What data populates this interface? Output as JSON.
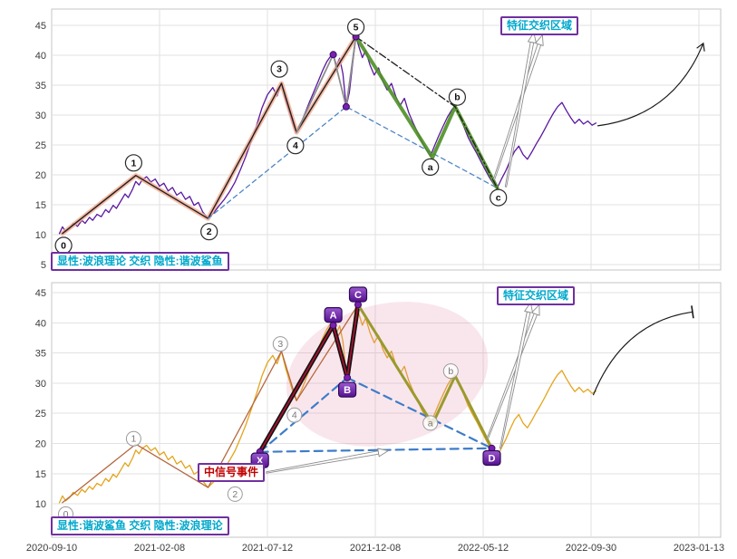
{
  "chart_data": {
    "type": "line",
    "description": "Same price series rendered in two stacked panels: explicit Elliott-wave view (top) and explicit harmonic-shark view (bottom)",
    "x_tick_labels": [
      "2020-09-10",
      "2021-02-08",
      "2021-07-12",
      "2021-12-08",
      "2022-05-12",
      "2022-09-30",
      "2023-01-13"
    ],
    "x_unit": "tick-index (0..6, evenly spaced date ticks)",
    "price_series": [
      [
        0.07,
        10.1
      ],
      [
        0.1,
        11.3
      ],
      [
        0.13,
        10.5
      ],
      [
        0.17,
        11.1
      ],
      [
        0.2,
        11.9
      ],
      [
        0.24,
        11.4
      ],
      [
        0.28,
        12.4
      ],
      [
        0.31,
        11.9
      ],
      [
        0.35,
        12.9
      ],
      [
        0.38,
        12.4
      ],
      [
        0.42,
        13.4
      ],
      [
        0.46,
        13.0
      ],
      [
        0.5,
        14.2
      ],
      [
        0.53,
        13.7
      ],
      [
        0.57,
        14.9
      ],
      [
        0.6,
        14.4
      ],
      [
        0.64,
        15.6
      ],
      [
        0.68,
        16.8
      ],
      [
        0.71,
        16.2
      ],
      [
        0.75,
        17.6
      ],
      [
        0.78,
        18.9
      ],
      [
        0.81,
        18.3
      ],
      [
        0.84,
        19.2
      ],
      [
        0.88,
        19.7
      ],
      [
        0.92,
        18.8
      ],
      [
        0.96,
        19.3
      ],
      [
        1.0,
        18.1
      ],
      [
        1.04,
        18.6
      ],
      [
        1.08,
        17.3
      ],
      [
        1.12,
        17.9
      ],
      [
        1.16,
        16.6
      ],
      [
        1.2,
        17.1
      ],
      [
        1.24,
        15.9
      ],
      [
        1.28,
        16.4
      ],
      [
        1.32,
        14.9
      ],
      [
        1.36,
        15.4
      ],
      [
        1.4,
        13.8
      ],
      [
        1.45,
        12.7
      ],
      [
        1.5,
        13.6
      ],
      [
        1.55,
        14.8
      ],
      [
        1.6,
        15.9
      ],
      [
        1.65,
        17.2
      ],
      [
        1.7,
        18.8
      ],
      [
        1.75,
        20.9
      ],
      [
        1.8,
        23.1
      ],
      [
        1.85,
        25.6
      ],
      [
        1.9,
        28.3
      ],
      [
        1.95,
        31.2
      ],
      [
        2.0,
        33.4
      ],
      [
        2.05,
        34.6
      ],
      [
        2.09,
        33.2
      ],
      [
        2.13,
        35.3
      ],
      [
        2.17,
        32.4
      ],
      [
        2.21,
        30.1
      ],
      [
        2.24,
        28.3
      ],
      [
        2.27,
        27.1
      ],
      [
        2.31,
        28.6
      ],
      [
        2.35,
        30.4
      ],
      [
        2.39,
        32.2
      ],
      [
        2.43,
        33.9
      ],
      [
        2.47,
        35.6
      ],
      [
        2.51,
        37.4
      ],
      [
        2.55,
        38.9
      ],
      [
        2.58,
        39.7
      ],
      [
        2.61,
        40.1
      ],
      [
        2.64,
        38.3
      ],
      [
        2.67,
        39.5
      ],
      [
        2.7,
        36.9
      ],
      [
        2.73,
        31.4
      ],
      [
        2.76,
        33.8
      ],
      [
        2.79,
        38.6
      ],
      [
        2.82,
        43.1
      ],
      [
        2.85,
        41.3
      ],
      [
        2.88,
        39.6
      ],
      [
        2.91,
        40.8
      ],
      [
        2.95,
        38.4
      ],
      [
        2.99,
        36.7
      ],
      [
        3.03,
        37.9
      ],
      [
        3.07,
        35.6
      ],
      [
        3.11,
        34.2
      ],
      [
        3.15,
        35.3
      ],
      [
        3.19,
        33.1
      ],
      [
        3.23,
        31.6
      ],
      [
        3.27,
        32.8
      ],
      [
        3.31,
        30.4
      ],
      [
        3.35,
        28.7
      ],
      [
        3.39,
        27.2
      ],
      [
        3.43,
        25.6
      ],
      [
        3.47,
        24.3
      ],
      [
        3.51,
        23.1
      ],
      [
        3.55,
        24.9
      ],
      [
        3.59,
        26.6
      ],
      [
        3.63,
        28.2
      ],
      [
        3.67,
        29.7
      ],
      [
        3.71,
        30.9
      ],
      [
        3.74,
        31.5
      ],
      [
        3.78,
        29.9
      ],
      [
        3.82,
        28.1
      ],
      [
        3.86,
        26.3
      ],
      [
        3.9,
        24.9
      ],
      [
        3.94,
        23.6
      ],
      [
        3.98,
        22.2
      ],
      [
        4.02,
        20.8
      ],
      [
        4.06,
        19.5
      ],
      [
        4.1,
        18.4
      ],
      [
        4.13,
        17.8
      ],
      [
        4.17,
        19.3
      ],
      [
        4.21,
        20.7
      ],
      [
        4.25,
        22.4
      ],
      [
        4.29,
        23.9
      ],
      [
        4.33,
        24.8
      ],
      [
        4.37,
        23.4
      ],
      [
        4.41,
        22.6
      ],
      [
        4.45,
        23.8
      ],
      [
        4.49,
        25.1
      ],
      [
        4.53,
        26.3
      ],
      [
        4.57,
        27.6
      ],
      [
        4.61,
        29.0
      ],
      [
        4.65,
        30.3
      ],
      [
        4.69,
        31.4
      ],
      [
        4.73,
        32.1
      ],
      [
        4.77,
        30.8
      ],
      [
        4.81,
        29.6
      ],
      [
        4.85,
        28.6
      ],
      [
        4.89,
        29.3
      ],
      [
        4.93,
        28.5
      ],
      [
        4.97,
        29.0
      ],
      [
        5.01,
        28.3
      ],
      [
        5.05,
        28.7
      ]
    ],
    "panels": [
      {
        "name": "explicit-wave-implicit-harmonic",
        "legend_label": "显性:波浪理论 交织 隐性:谐波鲨鱼",
        "region_label": "特征交织区域",
        "price_color": "#5a17a0",
        "yticks": [
          45,
          40,
          35,
          30,
          25,
          20,
          15,
          10,
          5
        ],
        "wave_label_style": "solid",
        "wave_labels": [
          {
            "label": "0",
            "x": 0.11,
            "y": 8.2
          },
          {
            "label": "1",
            "x": 0.76,
            "y": 22.0
          },
          {
            "label": "2",
            "x": 1.46,
            "y": 10.5
          },
          {
            "label": "3",
            "x": 2.11,
            "y": 37.7
          },
          {
            "label": "4",
            "x": 2.26,
            "y": 24.9
          },
          {
            "label": "5",
            "x": 2.82,
            "y": 44.7
          },
          {
            "label": "a",
            "x": 3.51,
            "y": 21.3
          },
          {
            "label": "b",
            "x": 3.76,
            "y": 33.0
          },
          {
            "label": "c",
            "x": 4.14,
            "y": 16.2
          }
        ],
        "overlays": [
          {
            "name": "wave-path-highlight",
            "color": "#f2a98e",
            "width": 5,
            "opacity": 0.8,
            "points": [
              [
                0.1,
                10.2
              ],
              [
                0.78,
                19.9
              ],
              [
                1.45,
                12.7
              ],
              [
                2.13,
                35.3
              ],
              [
                2.27,
                27.1
              ],
              [
                2.82,
                43.1
              ]
            ]
          },
          {
            "name": "wave-path-line",
            "color": "#1f1f1f",
            "width": 1.4,
            "points": [
              [
                0.1,
                10.2
              ],
              [
                0.78,
                19.9
              ],
              [
                1.45,
                12.7
              ],
              [
                2.13,
                35.3
              ],
              [
                2.27,
                27.1
              ],
              [
                2.82,
                43.1
              ]
            ]
          },
          {
            "name": "sub-wave-gray",
            "color": "#8d8d8d",
            "width": 1.8,
            "points": [
              [
                2.27,
                27.1
              ],
              [
                2.61,
                40.1
              ],
              [
                2.73,
                31.4
              ],
              [
                2.82,
                43.1
              ]
            ]
          },
          {
            "name": "projection-dashed-blue",
            "color": "#4f86c6",
            "width": 1.3,
            "dash": "5 4",
            "points": [
              [
                1.45,
                12.7
              ],
              [
                2.73,
                31.4
              ],
              [
                4.13,
                17.8
              ]
            ]
          },
          {
            "name": "abc-path-highlight",
            "color": "#4e8f26",
            "width": 4,
            "opacity": 0.9,
            "points": [
              [
                2.82,
                43.1
              ],
              [
                3.53,
                22.9
              ],
              [
                3.74,
                31.4
              ],
              [
                4.13,
                17.8
              ]
            ]
          },
          {
            "name": "abc-dashdot",
            "color": "#1f1f1f",
            "width": 1.3,
            "dash": "8 3 2 3",
            "points": [
              [
                2.82,
                43.1
              ],
              [
                3.74,
                31.4
              ],
              [
                4.13,
                17.8
              ]
            ]
          }
        ],
        "point_markers": [
          [
            2.61,
            40.1
          ],
          [
            2.73,
            31.4
          ],
          [
            2.82,
            43.1
          ]
        ],
        "beams": [
          {
            "from": [
              4.1,
              19.2
            ],
            "to": [
              4.55,
              43.4
            ]
          },
          {
            "from": [
              4.21,
              18.0
            ],
            "to": [
              4.47,
              43.8
            ]
          }
        ],
        "trend_arrow": {
          "from": [
            5.06,
            28.2
          ],
          "to": [
            6.04,
            42.0
          ],
          "cap": "arrow"
        }
      },
      {
        "name": "explicit-harmonic-implicit-wave",
        "legend_label": "显性:谐波鲨鱼 交织 隐性:波浪理论",
        "region_label": "特征交织区域",
        "signal_label": "中信号事件",
        "price_color": "#e4a41c",
        "yticks": [
          45,
          40,
          35,
          30,
          25,
          20,
          15,
          10
        ],
        "wave_label_style": "faded",
        "wave_labels": [
          {
            "label": "0",
            "x": 0.13,
            "y": 8.3
          },
          {
            "label": "1",
            "x": 0.76,
            "y": 20.8
          },
          {
            "label": "2",
            "x": 1.7,
            "y": 11.6
          },
          {
            "label": "3",
            "x": 2.12,
            "y": 36.5
          },
          {
            "label": "4",
            "x": 2.25,
            "y": 24.7
          },
          {
            "label": "a",
            "x": 3.51,
            "y": 23.4
          },
          {
            "label": "b",
            "x": 3.7,
            "y": 32.0
          }
        ],
        "pattern_badges": [
          {
            "label": "X",
            "x": 1.93,
            "y": 17.2
          },
          {
            "label": "A",
            "x": 2.61,
            "y": 41.3
          },
          {
            "label": "B",
            "x": 2.74,
            "y": 28.9
          },
          {
            "label": "C",
            "x": 2.84,
            "y": 44.7
          },
          {
            "label": "D",
            "x": 4.08,
            "y": 17.6
          }
        ],
        "overlays": [
          {
            "name": "hidden-wave-line",
            "color": "#b5683f",
            "width": 1.3,
            "points": [
              [
                0.1,
                10.2
              ],
              [
                0.78,
                19.9
              ],
              [
                1.45,
                12.7
              ],
              [
                2.13,
                35.3
              ],
              [
                2.27,
                27.1
              ],
              [
                2.84,
                43.0
              ],
              [
                3.53,
                23.2
              ],
              [
                3.74,
                31.2
              ],
              [
                4.08,
                19.2
              ]
            ]
          },
          {
            "name": "xd-dashed",
            "color": "#3d7cc9",
            "width": 2.2,
            "dash": "9 6",
            "points": [
              [
                1.93,
                18.6
              ],
              [
                4.08,
                19.2
              ]
            ]
          },
          {
            "name": "xb-dashed",
            "color": "#3d7cc9",
            "width": 2.2,
            "dash": "9 6",
            "points": [
              [
                1.93,
                18.6
              ],
              [
                2.74,
                30.9
              ]
            ]
          },
          {
            "name": "bd-dashed",
            "color": "#3d7cc9",
            "width": 2.2,
            "dash": "9 6",
            "points": [
              [
                2.74,
                30.9
              ],
              [
                4.08,
                19.2
              ]
            ]
          },
          {
            "name": "leg-xa-outer",
            "color": "#141414",
            "width": 5,
            "points": [
              [
                1.93,
                18.6
              ],
              [
                2.61,
                39.6
              ]
            ]
          },
          {
            "name": "leg-ab-outer",
            "color": "#141414",
            "width": 5,
            "points": [
              [
                2.61,
                39.6
              ],
              [
                2.74,
                30.9
              ]
            ]
          },
          {
            "name": "leg-bc-outer",
            "color": "#141414",
            "width": 5,
            "points": [
              [
                2.74,
                30.9
              ],
              [
                2.84,
                43.0
              ]
            ]
          },
          {
            "name": "leg-xa-core",
            "color": "#b01030",
            "width": 1.6,
            "points": [
              [
                1.93,
                18.6
              ],
              [
                2.61,
                39.6
              ]
            ]
          },
          {
            "name": "leg-ab-core",
            "color": "#b01030",
            "width": 1.6,
            "points": [
              [
                2.61,
                39.6
              ],
              [
                2.74,
                30.9
              ]
            ]
          },
          {
            "name": "leg-bc-core",
            "color": "#b01030",
            "width": 1.6,
            "points": [
              [
                2.74,
                30.9
              ],
              [
                2.84,
                43.0
              ]
            ]
          },
          {
            "name": "leg-cd-olive",
            "color": "#9a9a2e",
            "width": 3,
            "points": [
              [
                2.84,
                43.0
              ],
              [
                3.53,
                23.2
              ],
              [
                3.74,
                31.2
              ],
              [
                4.08,
                19.2
              ]
            ]
          }
        ],
        "point_markers": [
          [
            1.93,
            18.6
          ],
          [
            2.61,
            39.6
          ],
          [
            2.74,
            30.9
          ],
          [
            2.84,
            43.0
          ],
          [
            4.08,
            19.2
          ]
        ],
        "ellipse": {
          "cx": 3.11,
          "cy": 31.5,
          "rx": 0.95,
          "ry": 11.6,
          "rotation": -14,
          "color": "rgba(226,128,158,0.20)"
        },
        "beams": [
          {
            "from": [
              4.04,
              20.8
            ],
            "to": [
              4.52,
              43.0
            ]
          },
          {
            "from": [
              4.16,
              19.2
            ],
            "to": [
              4.44,
              43.4
            ]
          },
          {
            "from": [
              1.99,
              15.2
            ],
            "to": [
              3.12,
              18.8
            ]
          }
        ],
        "trend_arrow": {
          "from": [
            5.02,
            28.0
          ],
          "to": [
            5.94,
            41.8
          ],
          "cap": "bar"
        }
      }
    ]
  }
}
